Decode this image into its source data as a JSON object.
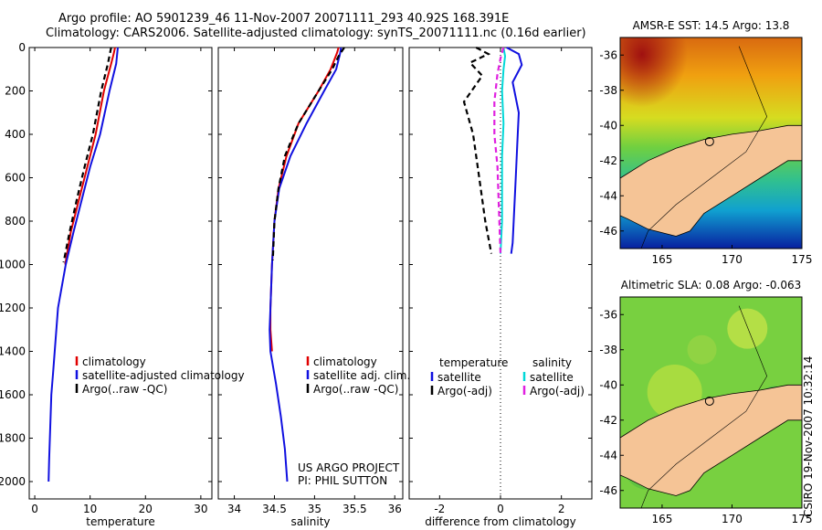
{
  "header": {
    "line1": "Argo profile: AO 5901239_46 11-Nov-2007 20071111_293 40.92S 168.391E",
    "line2": "Climatology: CARS2006. Satellite-adjusted climatology: synTS_20071111.nc (0.16d earlier)"
  },
  "colors": {
    "climatology": "#e00000",
    "satellite": "#1010e0",
    "argo": "#000000",
    "salinity_sat": "#00d8d8",
    "salinity_argo": "#e020e0",
    "land": "#f5c496"
  },
  "chart_data": [
    {
      "type": "line",
      "name": "temperature-profile",
      "xlabel": "temperature",
      "xlim": [
        -1,
        32
      ],
      "ylim": [
        2080,
        0
      ],
      "xticks": [
        0,
        10,
        20,
        30
      ],
      "yticks": [
        0,
        200,
        400,
        600,
        800,
        1000,
        1200,
        1400,
        1600,
        1800,
        2000
      ],
      "series": [
        {
          "name": "climatology",
          "color": "#e00000",
          "dash": "",
          "x": [
            14.5,
            14.3,
            13.8,
            12.5,
            11.0,
            9.5,
            8.0,
            6.5,
            5.5
          ],
          "y": [
            0,
            25,
            75,
            200,
            400,
            550,
            700,
            850,
            1000
          ]
        },
        {
          "name": "satellite-adjusted climatology",
          "color": "#1010e0",
          "dash": "",
          "x": [
            15.0,
            14.9,
            14.7,
            13.5,
            11.8,
            10.0,
            8.5,
            7.0,
            5.6,
            4.2,
            3.6,
            3.3,
            3.0,
            2.8,
            2.6,
            2.5
          ],
          "y": [
            0,
            25,
            75,
            200,
            400,
            550,
            700,
            850,
            1000,
            1200,
            1400,
            1500,
            1600,
            1750,
            1900,
            2000
          ]
        },
        {
          "name": "Argo(..raw -QC)",
          "color": "#000000",
          "dash": "6,4",
          "x": [
            13.8,
            13.6,
            13.2,
            12.0,
            10.5,
            9.0,
            7.6,
            6.3,
            5.2
          ],
          "y": [
            0,
            25,
            75,
            200,
            400,
            550,
            700,
            850,
            990
          ]
        }
      ],
      "legend": [
        "climatology",
        "satellite-adjusted climatology",
        "Argo(..raw -QC)"
      ]
    },
    {
      "type": "line",
      "name": "salinity-profile",
      "xlabel": "salinity",
      "xlim": [
        33.8,
        36.1
      ],
      "ylim": [
        2080,
        0
      ],
      "xticks": [
        34,
        34.5,
        35,
        35.5,
        36
      ],
      "series": [
        {
          "name": "climatology",
          "color": "#e00000",
          "dash": "",
          "x": [
            35.3,
            35.28,
            35.2,
            35.05,
            34.8,
            34.65,
            34.55,
            34.5,
            34.47,
            34.45,
            34.45,
            34.47
          ],
          "y": [
            0,
            25,
            100,
            200,
            350,
            500,
            650,
            800,
            1000,
            1200,
            1300,
            1400
          ]
        },
        {
          "name": "satellite adj. clim.",
          "color": "#1010e0",
          "dash": "",
          "x": [
            35.33,
            35.32,
            35.27,
            35.12,
            34.9,
            34.7,
            34.56,
            34.5,
            34.47,
            34.45,
            34.44,
            34.45,
            34.52,
            34.58,
            34.63,
            34.66
          ],
          "y": [
            0,
            25,
            100,
            200,
            350,
            500,
            650,
            800,
            1000,
            1200,
            1300,
            1400,
            1550,
            1700,
            1850,
            2000
          ]
        },
        {
          "name": "Argo(..raw -QC)",
          "color": "#000000",
          "dash": "6,4",
          "x": [
            35.37,
            35.3,
            35.22,
            35.05,
            34.8,
            34.63,
            34.55,
            34.5,
            34.48
          ],
          "y": [
            0,
            40,
            100,
            200,
            350,
            500,
            650,
            800,
            980
          ]
        }
      ],
      "legend": [
        "climatology",
        "satellite adj. clim.",
        "Argo(..raw -QC)"
      ],
      "annotation": [
        "US ARGO PROJECT",
        "PI: PHIL SUTTON"
      ]
    },
    {
      "type": "line",
      "name": "difference-profile",
      "xlabel": "difference from climatology",
      "xlim": [
        -3,
        3
      ],
      "ylim": [
        2080,
        0
      ],
      "xticks": [
        -2,
        0,
        2
      ],
      "series": [
        {
          "name": "temperature satellite",
          "color": "#1010e0",
          "dash": "",
          "x": [
            0.2,
            0.6,
            0.7,
            0.4,
            0.6,
            0.55,
            0.5,
            0.45,
            0.4,
            0.35
          ],
          "y": [
            0,
            30,
            80,
            160,
            300,
            450,
            600,
            750,
            900,
            950
          ]
        },
        {
          "name": "temperature Argo(-adj)",
          "color": "#000000",
          "dash": "6,4",
          "x": [
            -0.8,
            -0.4,
            -1.0,
            -0.6,
            -1.2,
            -0.9,
            -0.7,
            -0.5,
            -0.3
          ],
          "y": [
            0,
            30,
            70,
            130,
            250,
            400,
            600,
            800,
            950
          ]
        },
        {
          "name": "salinity satellite",
          "color": "#00d8d8",
          "dash": "",
          "x": [
            0.1,
            0.15,
            0.1,
            0.05,
            0.1,
            0.05,
            0.05,
            0.05,
            0.0
          ],
          "y": [
            0,
            40,
            100,
            200,
            350,
            500,
            650,
            800,
            950
          ]
        },
        {
          "name": "salinity Argo(-adj)",
          "color": "#e020e0",
          "dash": "6,4",
          "x": [
            0.1,
            0.0,
            -0.1,
            -0.2,
            -0.2,
            -0.1,
            -0.05,
            0.0
          ],
          "y": [
            0,
            50,
            120,
            250,
            400,
            550,
            750,
            950
          ]
        }
      ],
      "legend_temperature_title": "temperature",
      "legend_salinity_title": "salinity",
      "legend": [
        "satellite",
        "Argo(-adj)",
        "satellite",
        "Argo(-adj)"
      ]
    }
  ],
  "maps": [
    {
      "name": "sst-map",
      "title": "AMSR-E SST: 14.5 Argo: 13.8",
      "xticks": [
        165,
        170,
        175
      ],
      "yticks": [
        -36,
        -38,
        -40,
        -42,
        -44,
        -46
      ],
      "xlim": [
        162,
        175
      ],
      "ylim": [
        -47,
        -35
      ]
    },
    {
      "name": "sla-map",
      "title": "Altimetric SLA: 0.08 Argo: -0.063",
      "xticks": [
        165,
        170,
        175
      ],
      "yticks": [
        -36,
        -38,
        -40,
        -42,
        -44,
        -46
      ],
      "xlim": [
        162,
        175
      ],
      "ylim": [
        -47,
        -35
      ]
    }
  ],
  "float_position": {
    "lat": -40.92,
    "lon": 168.391
  },
  "stamp": "CSIRO 19-Nov-2007 10:32:14"
}
